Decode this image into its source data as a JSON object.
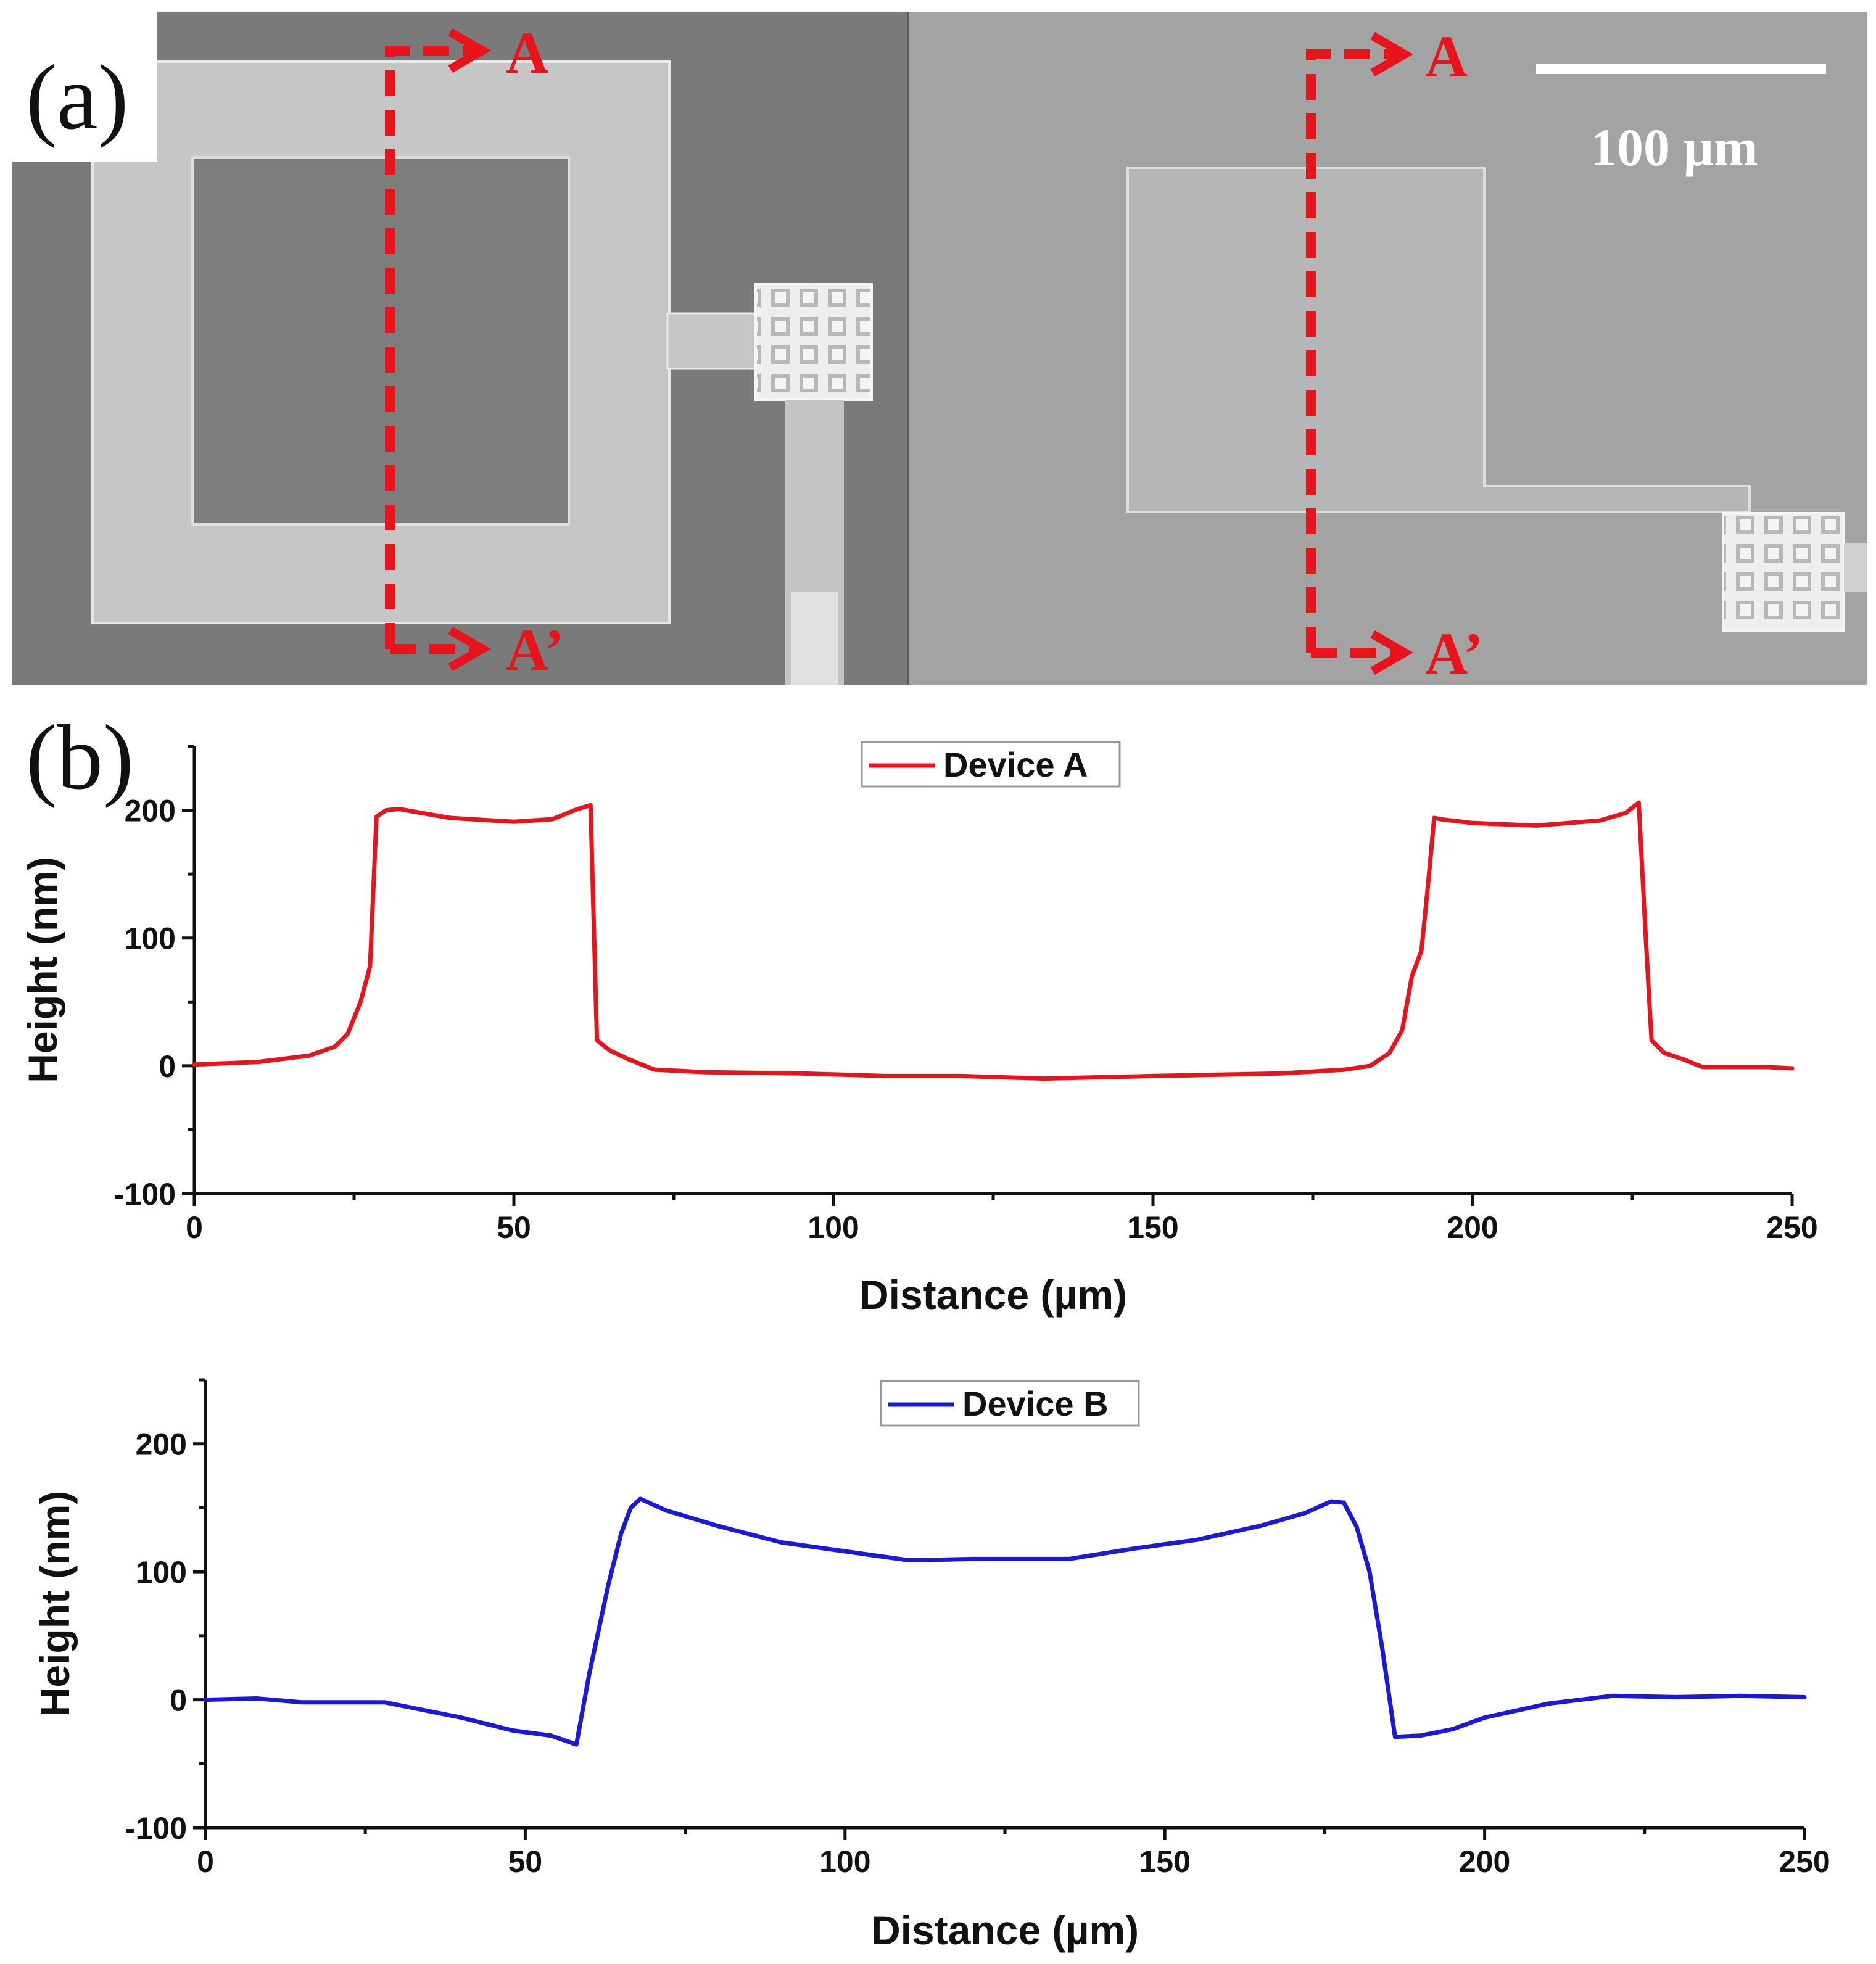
{
  "panel_a": {
    "label": "(a)",
    "scale_bar_label": "100 µm",
    "left_image": {
      "section_start": "A",
      "section_end": "A’"
    },
    "right_image": {
      "section_start": "A",
      "section_end": "A’"
    },
    "colors": {
      "section_line": "#e8141b",
      "scale_bar": "#ffffff"
    }
  },
  "panel_b": {
    "label": "(b)"
  },
  "chart_data": [
    {
      "type": "line",
      "title": "",
      "xlabel": "Distance (µm)",
      "ylabel": "Height (nm)",
      "xlim": [
        0,
        250
      ],
      "ylim": [
        -100,
        250
      ],
      "xticks": [
        0,
        50,
        100,
        150,
        200,
        250
      ],
      "yticks": [
        -100,
        0,
        100,
        200
      ],
      "legend": "top-center",
      "series": [
        {
          "name": "Device A",
          "color": "#e8141b",
          "x": [
            0,
            10,
            18,
            22,
            24,
            26,
            27.5,
            28.5,
            30,
            32,
            40,
            50,
            56,
            60,
            62,
            63,
            65,
            68,
            72,
            80,
            95,
            108,
            120,
            133,
            150,
            170,
            180,
            184,
            187,
            189,
            190.5,
            192,
            193,
            194,
            195,
            200,
            210,
            220,
            224,
            226,
            227,
            228,
            230,
            233,
            236,
            240,
            246,
            250
          ],
          "y": [
            1,
            3,
            8,
            15,
            25,
            50,
            78,
            195,
            200,
            201,
            194,
            191,
            193,
            201,
            204,
            20,
            12,
            5,
            -3,
            -5,
            -6,
            -8,
            -8,
            -10,
            -8,
            -6,
            -3,
            0,
            10,
            28,
            70,
            90,
            140,
            194,
            193,
            190,
            188,
            192,
            198,
            206,
            110,
            20,
            10,
            5,
            -1,
            -1,
            -1,
            -2
          ]
        }
      ]
    },
    {
      "type": "line",
      "title": "",
      "xlabel": "Distance (µm)",
      "ylabel": "Height (nm)",
      "xlim": [
        0,
        250
      ],
      "ylim": [
        -100,
        250
      ],
      "xticks": [
        0,
        50,
        100,
        150,
        200,
        250
      ],
      "yticks": [
        -100,
        0,
        100,
        200
      ],
      "legend": "top-center",
      "series": [
        {
          "name": "Device B",
          "color": "#1a1ad6",
          "x": [
            0,
            8,
            15,
            22,
            28,
            32,
            40,
            48,
            54,
            58,
            60,
            63,
            65,
            66.5,
            68,
            72,
            80,
            90,
            100,
            110,
            120,
            135,
            145,
            155,
            165,
            172,
            176,
            178,
            180,
            182,
            184,
            186,
            190,
            195,
            200,
            210,
            220,
            230,
            240,
            250
          ],
          "y": [
            0,
            1,
            -2,
            -2,
            -2,
            -6,
            -14,
            -24,
            -28,
            -35,
            20,
            90,
            130,
            150,
            157,
            148,
            136,
            123,
            116,
            109,
            110,
            110,
            118,
            125,
            136,
            146,
            155,
            154,
            135,
            100,
            40,
            -29,
            -28,
            -23,
            -14,
            -3,
            3,
            2,
            3,
            2
          ]
        }
      ]
    }
  ]
}
